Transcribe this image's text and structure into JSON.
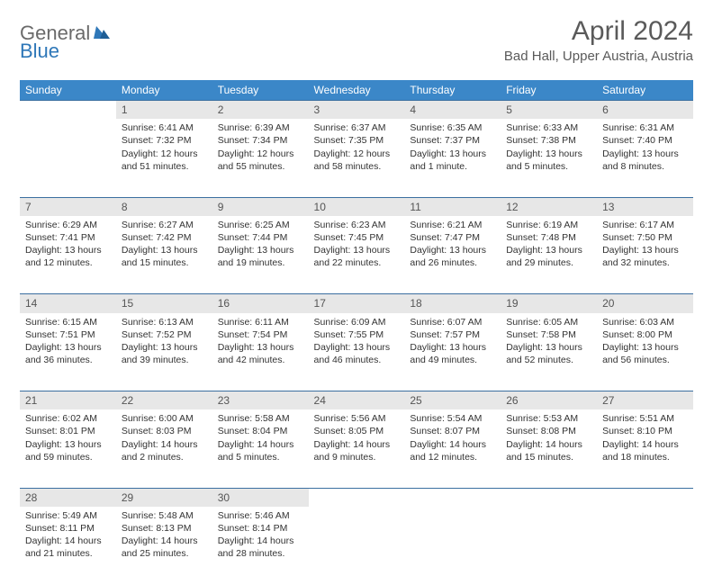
{
  "logo": {
    "part1": "General",
    "part2": "Blue"
  },
  "title": "April 2024",
  "location": "Bad Hall, Upper Austria, Austria",
  "colors": {
    "header_bg": "#3b87c8",
    "header_text": "#ffffff",
    "daynum_bg": "#e7e7e7",
    "row_divider": "#3b6fa0",
    "logo_gray": "#6a6a6a",
    "logo_blue": "#2e77b8",
    "body_text": "#333333",
    "title_text": "#5a5a5a",
    "page_bg": "#ffffff"
  },
  "weekdays": [
    "Sunday",
    "Monday",
    "Tuesday",
    "Wednesday",
    "Thursday",
    "Friday",
    "Saturday"
  ],
  "weeks": [
    [
      null,
      {
        "n": "1",
        "sr": "6:41 AM",
        "ss": "7:32 PM",
        "dl": "12 hours and 51 minutes."
      },
      {
        "n": "2",
        "sr": "6:39 AM",
        "ss": "7:34 PM",
        "dl": "12 hours and 55 minutes."
      },
      {
        "n": "3",
        "sr": "6:37 AM",
        "ss": "7:35 PM",
        "dl": "12 hours and 58 minutes."
      },
      {
        "n": "4",
        "sr": "6:35 AM",
        "ss": "7:37 PM",
        "dl": "13 hours and 1 minute."
      },
      {
        "n": "5",
        "sr": "6:33 AM",
        "ss": "7:38 PM",
        "dl": "13 hours and 5 minutes."
      },
      {
        "n": "6",
        "sr": "6:31 AM",
        "ss": "7:40 PM",
        "dl": "13 hours and 8 minutes."
      }
    ],
    [
      {
        "n": "7",
        "sr": "6:29 AM",
        "ss": "7:41 PM",
        "dl": "13 hours and 12 minutes."
      },
      {
        "n": "8",
        "sr": "6:27 AM",
        "ss": "7:42 PM",
        "dl": "13 hours and 15 minutes."
      },
      {
        "n": "9",
        "sr": "6:25 AM",
        "ss": "7:44 PM",
        "dl": "13 hours and 19 minutes."
      },
      {
        "n": "10",
        "sr": "6:23 AM",
        "ss": "7:45 PM",
        "dl": "13 hours and 22 minutes."
      },
      {
        "n": "11",
        "sr": "6:21 AM",
        "ss": "7:47 PM",
        "dl": "13 hours and 26 minutes."
      },
      {
        "n": "12",
        "sr": "6:19 AM",
        "ss": "7:48 PM",
        "dl": "13 hours and 29 minutes."
      },
      {
        "n": "13",
        "sr": "6:17 AM",
        "ss": "7:50 PM",
        "dl": "13 hours and 32 minutes."
      }
    ],
    [
      {
        "n": "14",
        "sr": "6:15 AM",
        "ss": "7:51 PM",
        "dl": "13 hours and 36 minutes."
      },
      {
        "n": "15",
        "sr": "6:13 AM",
        "ss": "7:52 PM",
        "dl": "13 hours and 39 minutes."
      },
      {
        "n": "16",
        "sr": "6:11 AM",
        "ss": "7:54 PM",
        "dl": "13 hours and 42 minutes."
      },
      {
        "n": "17",
        "sr": "6:09 AM",
        "ss": "7:55 PM",
        "dl": "13 hours and 46 minutes."
      },
      {
        "n": "18",
        "sr": "6:07 AM",
        "ss": "7:57 PM",
        "dl": "13 hours and 49 minutes."
      },
      {
        "n": "19",
        "sr": "6:05 AM",
        "ss": "7:58 PM",
        "dl": "13 hours and 52 minutes."
      },
      {
        "n": "20",
        "sr": "6:03 AM",
        "ss": "8:00 PM",
        "dl": "13 hours and 56 minutes."
      }
    ],
    [
      {
        "n": "21",
        "sr": "6:02 AM",
        "ss": "8:01 PM",
        "dl": "13 hours and 59 minutes."
      },
      {
        "n": "22",
        "sr": "6:00 AM",
        "ss": "8:03 PM",
        "dl": "14 hours and 2 minutes."
      },
      {
        "n": "23",
        "sr": "5:58 AM",
        "ss": "8:04 PM",
        "dl": "14 hours and 5 minutes."
      },
      {
        "n": "24",
        "sr": "5:56 AM",
        "ss": "8:05 PM",
        "dl": "14 hours and 9 minutes."
      },
      {
        "n": "25",
        "sr": "5:54 AM",
        "ss": "8:07 PM",
        "dl": "14 hours and 12 minutes."
      },
      {
        "n": "26",
        "sr": "5:53 AM",
        "ss": "8:08 PM",
        "dl": "14 hours and 15 minutes."
      },
      {
        "n": "27",
        "sr": "5:51 AM",
        "ss": "8:10 PM",
        "dl": "14 hours and 18 minutes."
      }
    ],
    [
      {
        "n": "28",
        "sr": "5:49 AM",
        "ss": "8:11 PM",
        "dl": "14 hours and 21 minutes."
      },
      {
        "n": "29",
        "sr": "5:48 AM",
        "ss": "8:13 PM",
        "dl": "14 hours and 25 minutes."
      },
      {
        "n": "30",
        "sr": "5:46 AM",
        "ss": "8:14 PM",
        "dl": "14 hours and 28 minutes."
      },
      null,
      null,
      null,
      null
    ]
  ],
  "labels": {
    "sunrise": "Sunrise:",
    "sunset": "Sunset:",
    "daylight": "Daylight:"
  }
}
